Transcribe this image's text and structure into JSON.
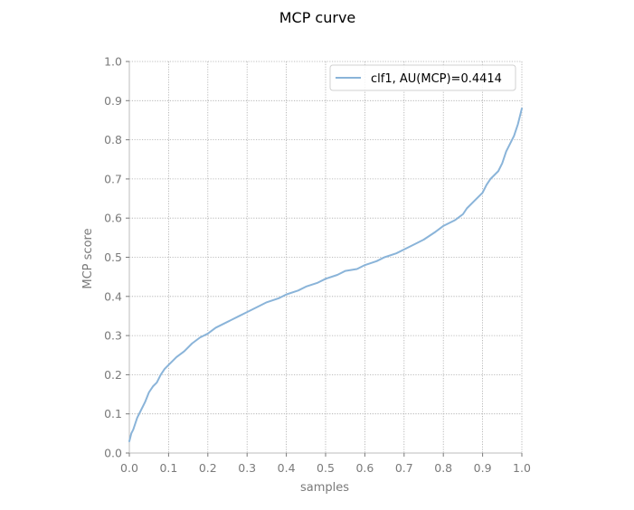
{
  "chart_data": {
    "type": "line",
    "title": "MCP curve",
    "xlabel": "samples",
    "ylabel": "MCP score",
    "xlim": [
      0,
      1
    ],
    "ylim": [
      0,
      1
    ],
    "xticks": [
      "0.0",
      "0.1",
      "0.2",
      "0.3",
      "0.4",
      "0.5",
      "0.6",
      "0.7",
      "0.8",
      "0.9",
      "1.0"
    ],
    "yticks": [
      "0.0",
      "0.1",
      "0.2",
      "0.3",
      "0.4",
      "0.5",
      "0.6",
      "0.7",
      "0.8",
      "0.9",
      "1.0"
    ],
    "grid": true,
    "legend_position": "top-right",
    "colors": {
      "series": "#8ab4d9",
      "grid": "#a9a9a9",
      "axis_text": "#7a7a7a"
    },
    "series": [
      {
        "name": "clf1, AU(MCP)=0.4414",
        "x": [
          0.0,
          0.005,
          0.01,
          0.02,
          0.03,
          0.04,
          0.05,
          0.06,
          0.07,
          0.08,
          0.09,
          0.1,
          0.12,
          0.14,
          0.16,
          0.18,
          0.2,
          0.22,
          0.25,
          0.28,
          0.3,
          0.33,
          0.35,
          0.38,
          0.4,
          0.43,
          0.45,
          0.48,
          0.5,
          0.53,
          0.55,
          0.58,
          0.6,
          0.63,
          0.65,
          0.68,
          0.7,
          0.73,
          0.75,
          0.78,
          0.8,
          0.83,
          0.85,
          0.86,
          0.88,
          0.9,
          0.91,
          0.92,
          0.94,
          0.95,
          0.96,
          0.97,
          0.98,
          0.99,
          1.0
        ],
        "y": [
          0.03,
          0.05,
          0.06,
          0.09,
          0.11,
          0.13,
          0.155,
          0.17,
          0.18,
          0.2,
          0.215,
          0.225,
          0.245,
          0.26,
          0.28,
          0.295,
          0.305,
          0.32,
          0.335,
          0.35,
          0.36,
          0.375,
          0.385,
          0.395,
          0.405,
          0.415,
          0.425,
          0.435,
          0.445,
          0.455,
          0.465,
          0.47,
          0.48,
          0.49,
          0.5,
          0.51,
          0.52,
          0.535,
          0.545,
          0.565,
          0.58,
          0.595,
          0.61,
          0.625,
          0.645,
          0.665,
          0.685,
          0.7,
          0.72,
          0.74,
          0.77,
          0.79,
          0.81,
          0.84,
          0.88
        ]
      }
    ]
  }
}
